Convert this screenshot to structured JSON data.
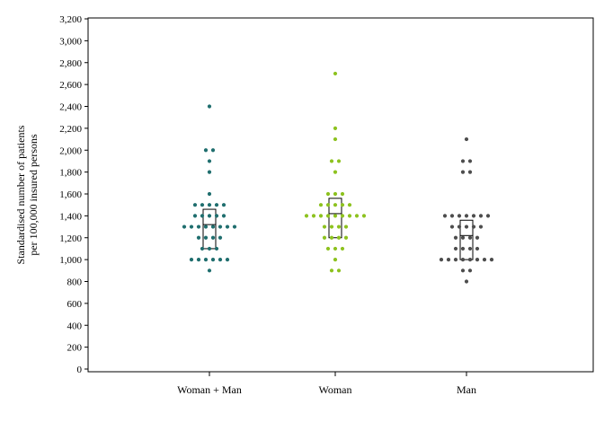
{
  "chart_data": {
    "type": "scatter",
    "subtype": "dot-strip with box",
    "title": "",
    "xlabel": "",
    "ylabel_lines": [
      "Standardised number of patients",
      "per 100,000 insured persons"
    ],
    "ylim": [
      0,
      3200
    ],
    "yticks": [
      0,
      200,
      400,
      600,
      800,
      1000,
      1200,
      1400,
      1600,
      1800,
      2000,
      2200,
      2400,
      2600,
      2800,
      3000,
      3200
    ],
    "ytick_labels": [
      "0",
      "200",
      "400",
      "600",
      "800",
      "1,000",
      "1,200",
      "1,400",
      "1,600",
      "1,800",
      "2,000",
      "2,200",
      "2,400",
      "2,600",
      "2,800",
      "3,000",
      "3,200"
    ],
    "grid": false,
    "legend": "none",
    "categories": [
      "Woman + Man",
      "Woman",
      "Man"
    ],
    "series": [
      {
        "category": "Woman + Man",
        "color": "#1f6e6e",
        "box": {
          "q1": 1100,
          "median": 1320,
          "q3": 1460
        },
        "values": [
          900,
          1000,
          1000,
          1000,
          1000,
          1000,
          1000,
          1100,
          1100,
          1100,
          1200,
          1200,
          1200,
          1200,
          1300,
          1300,
          1300,
          1300,
          1300,
          1300,
          1300,
          1300,
          1400,
          1400,
          1400,
          1400,
          1400,
          1500,
          1500,
          1500,
          1500,
          1500,
          1600,
          1800,
          1900,
          2000,
          2000,
          2400
        ]
      },
      {
        "category": "Woman",
        "color": "#8dc21f",
        "box": {
          "q1": 1200,
          "median": 1420,
          "q3": 1560
        },
        "values": [
          900,
          900,
          1000,
          1100,
          1100,
          1100,
          1200,
          1200,
          1200,
          1200,
          1300,
          1300,
          1300,
          1300,
          1400,
          1400,
          1400,
          1400,
          1400,
          1400,
          1400,
          1400,
          1400,
          1500,
          1500,
          1500,
          1500,
          1500,
          1600,
          1600,
          1600,
          1800,
          1900,
          1900,
          2100,
          2200,
          2700
        ]
      },
      {
        "category": "Man",
        "color": "#4d4d4d",
        "box": {
          "q1": 1000,
          "median": 1220,
          "q3": 1360
        },
        "values": [
          800,
          900,
          900,
          1000,
          1000,
          1000,
          1000,
          1000,
          1000,
          1000,
          1000,
          1100,
          1100,
          1100,
          1100,
          1200,
          1200,
          1200,
          1200,
          1300,
          1300,
          1300,
          1300,
          1300,
          1400,
          1400,
          1400,
          1400,
          1400,
          1400,
          1400,
          1800,
          1800,
          1900,
          1900,
          2100
        ]
      }
    ]
  }
}
